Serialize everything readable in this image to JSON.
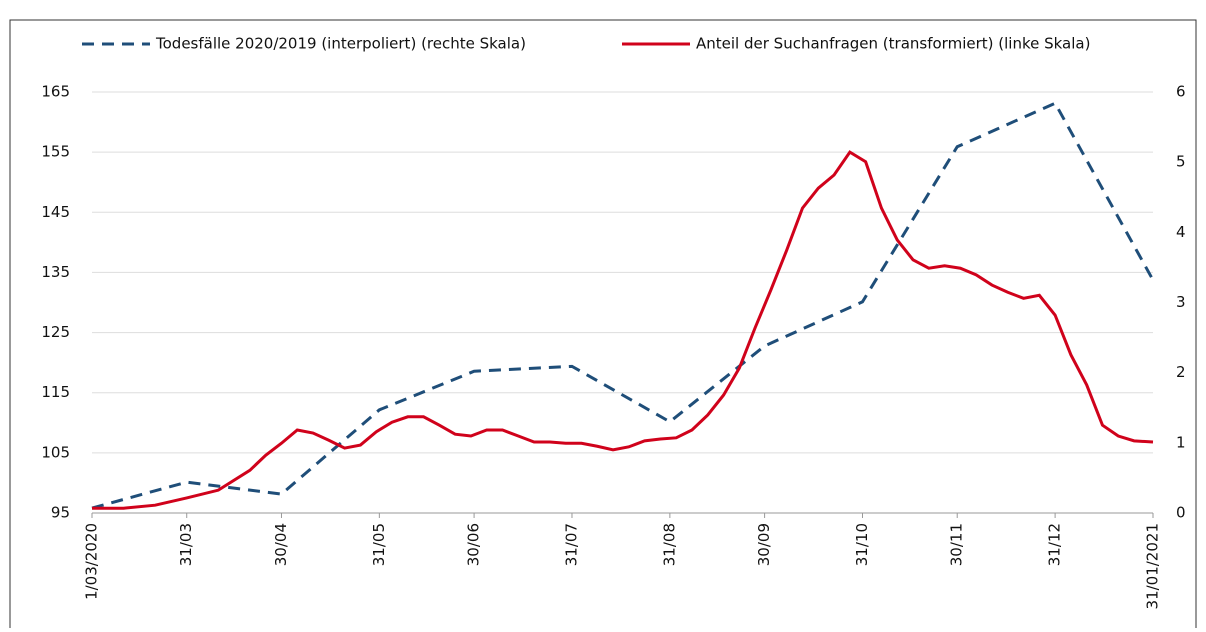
{
  "chart_data": {
    "type": "line",
    "series": [
      {
        "name": "Todesfälle 2020/2019 (interpoliert) (rechte Skala)",
        "color": "#1f4e79",
        "dash": true,
        "axis": "y2",
        "x": [
          0,
          30,
          60,
          91,
          121,
          152,
          183,
          213,
          244,
          274,
          305,
          336
        ],
        "values": [
          0.07,
          0.44,
          0.27,
          1.47,
          2.02,
          2.09,
          1.3,
          2.38,
          3.01,
          5.22,
          5.84,
          3.32
        ]
      },
      {
        "name": "Anteil der Suchanfragen (transformiert) (linke Skala)",
        "color": "#d0021b",
        "dash": false,
        "axis": "y",
        "x": [
          0,
          10,
          20,
          30,
          40,
          50,
          55,
          60,
          65,
          70,
          75,
          80,
          85,
          90,
          95,
          100,
          105,
          110,
          115,
          120,
          125,
          130,
          135,
          140,
          145,
          150,
          155,
          160,
          165,
          170,
          175,
          180,
          185,
          190,
          195,
          200,
          205,
          210,
          215,
          220,
          225,
          230,
          235,
          240,
          245,
          250,
          255,
          260,
          265,
          270,
          275,
          280,
          285,
          290,
          295,
          300,
          305,
          310,
          315,
          320,
          325,
          330,
          336
        ],
        "values": [
          95.8,
          95.8,
          96.3,
          97.5,
          98.8,
          102.1,
          104.6,
          106.6,
          108.8,
          108.3,
          107.1,
          105.8,
          106.3,
          108.5,
          110.1,
          111,
          111,
          109.6,
          108.1,
          107.8,
          108.8,
          108.8,
          107.8,
          106.8,
          106.8,
          106.6,
          106.6,
          106.1,
          105.5,
          106,
          107,
          107.3,
          107.5,
          108.8,
          111.3,
          114.6,
          119.1,
          125.8,
          132.1,
          138.7,
          145.7,
          149,
          151.2,
          155,
          153.4,
          145.7,
          140.4,
          137.1,
          135.7,
          136.1,
          135.7,
          134.6,
          132.9,
          131.7,
          130.7,
          131.2,
          127.9,
          121.3,
          116.3,
          109.6,
          107.8,
          107,
          106.8
        ]
      }
    ],
    "xlim": [
      0,
      336
    ],
    "xticks": [
      {
        "value": 0,
        "label": "1/03/2020"
      },
      {
        "value": 30,
        "label": "31/03"
      },
      {
        "value": 60,
        "label": "30/04"
      },
      {
        "value": 91,
        "label": "31/05"
      },
      {
        "value": 121,
        "label": "30/06"
      },
      {
        "value": 152,
        "label": "31/07"
      },
      {
        "value": 183,
        "label": "31/08"
      },
      {
        "value": 213,
        "label": "30/09"
      },
      {
        "value": 244,
        "label": "31/10"
      },
      {
        "value": 274,
        "label": "30/11"
      },
      {
        "value": 305,
        "label": "31/12"
      },
      {
        "value": 336,
        "label": "31/01/2021"
      }
    ],
    "ylim": [
      95,
      165
    ],
    "yticks": [
      95,
      105,
      115,
      125,
      135,
      145,
      155,
      165
    ],
    "y2lim": [
      0,
      6
    ],
    "y2ticks": [
      0,
      1,
      2,
      3,
      4,
      5,
      6
    ],
    "grid": true
  }
}
